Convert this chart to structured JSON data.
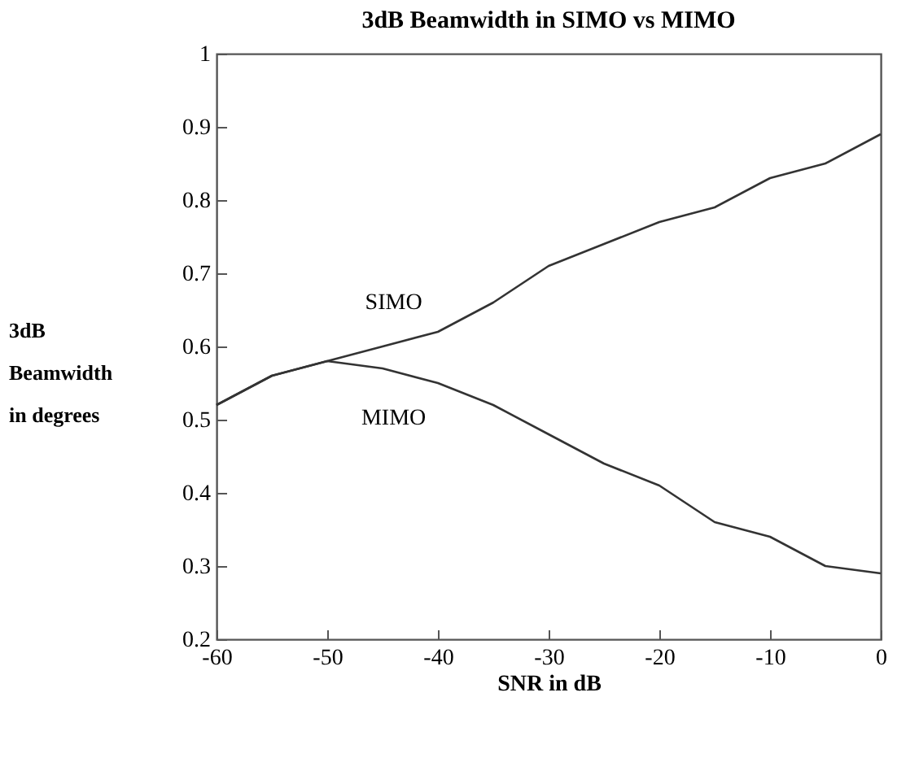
{
  "chart_data": {
    "type": "line",
    "title": "3dB Beamwidth in SIMO vs MIMO",
    "xlabel": "SNR in dB",
    "ylabel": "3dB Beamwidth in degrees",
    "x": [
      -60,
      -55,
      -50,
      -45,
      -40,
      -35,
      -30,
      -25,
      -20,
      -15,
      -10,
      -5,
      0
    ],
    "series": [
      {
        "name": "SIMO",
        "color": "#333333",
        "values": [
          0.52,
          0.56,
          0.58,
          0.6,
          0.62,
          0.66,
          0.71,
          0.74,
          0.77,
          0.79,
          0.83,
          0.85,
          0.89
        ]
      },
      {
        "name": "MIMO",
        "color": "#333333",
        "values": [
          0.52,
          0.56,
          0.58,
          0.57,
          0.55,
          0.52,
          0.48,
          0.44,
          0.41,
          0.36,
          0.34,
          0.3,
          0.29
        ]
      }
    ],
    "xlim": [
      -60,
      0
    ],
    "xticks": [
      -60,
      -50,
      -40,
      -30,
      -20,
      -10,
      0
    ],
    "ylim": [
      0.2,
      1
    ],
    "yticks": [
      0.2,
      0.3,
      0.4,
      0.5,
      0.6,
      0.7,
      0.8,
      0.9,
      1
    ],
    "grid": false,
    "legend": false,
    "marker": "none",
    "line_style": "solid"
  }
}
